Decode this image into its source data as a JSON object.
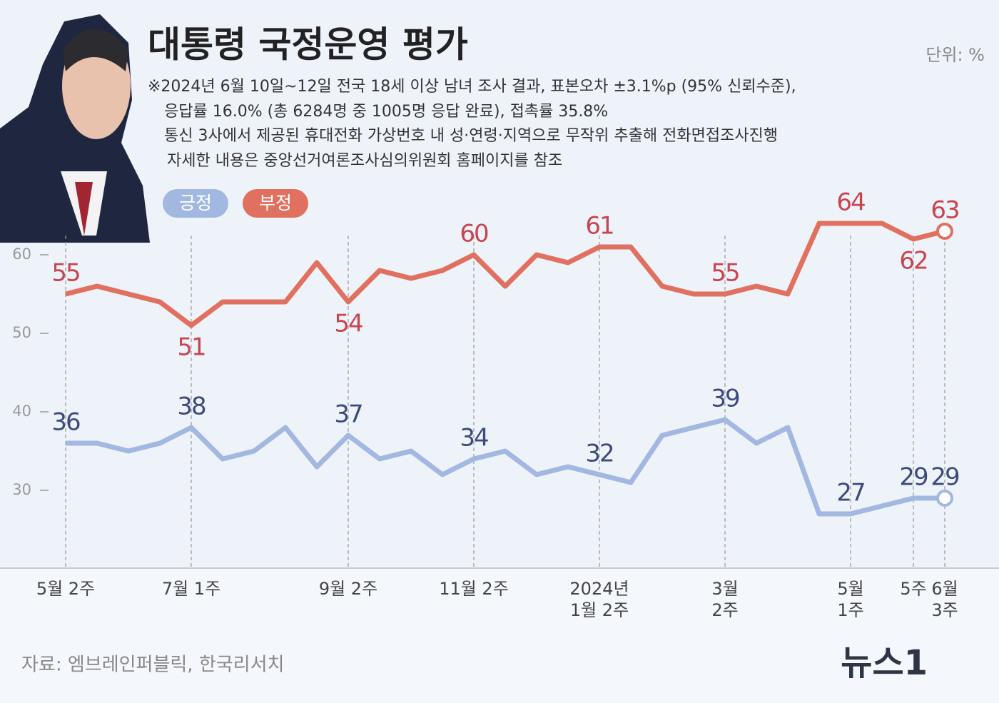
{
  "chart_data": {
    "type": "line",
    "title": "대통령 국정운영 평가",
    "unit": "단위: %",
    "notes": [
      "※2024년 6월 10일~12일 전국 18세 이상 남녀 조사 결과, 표본오차 ±3.1%p (95% 신뢰수준),",
      "응답률 16.0% (총 6284명 중 1005명 응답 완료), 접촉률 35.8%",
      "통신 3사에서 제공된 휴대전화 가상번호 내 성·연령·지역으로 무작위 추출해 전화면접조사진행",
      "자세한 내용은 중앙선거여론조사심의위원회 홈페이지를 참조"
    ],
    "source": "자료: 엠브레인퍼블릭, 한국리서치",
    "logo": "뉴스1",
    "categories": [
      "5월 2주",
      null,
      null,
      null,
      "7월 1주",
      null,
      null,
      null,
      null,
      "9월 2주",
      null,
      null,
      null,
      "11월 2주",
      null,
      null,
      null,
      "2024년\n1월 2주",
      null,
      null,
      null,
      "3월\n2주",
      null,
      null,
      null,
      "5월\n1주",
      null,
      "5주",
      "6월\n3주"
    ],
    "series": [
      {
        "name": "긍정",
        "color": "#a3b8e0",
        "label_color": "#3b4b7c",
        "values": [
          36,
          36,
          35,
          36,
          38,
          34,
          35,
          38,
          33,
          37,
          34,
          35,
          32,
          34,
          35,
          32,
          33,
          32,
          31,
          37,
          38,
          39,
          36,
          38,
          27,
          27,
          28,
          29,
          29
        ],
        "value_labels": [
          "36",
          null,
          null,
          null,
          "38",
          null,
          null,
          null,
          null,
          "37",
          null,
          null,
          null,
          "34",
          null,
          null,
          null,
          "32",
          null,
          null,
          null,
          "39",
          null,
          null,
          null,
          "27",
          null,
          "29",
          "29"
        ]
      },
      {
        "name": "부정",
        "color": "#e0705f",
        "label_color": "#c9444f",
        "values": [
          55,
          56,
          55,
          54,
          51,
          54,
          54,
          54,
          59,
          54,
          58,
          57,
          58,
          60,
          56,
          60,
          59,
          61,
          61,
          56,
          55,
          55,
          56,
          55,
          64,
          64,
          64,
          62,
          63
        ],
        "value_labels": [
          "55",
          null,
          null,
          null,
          "51",
          null,
          null,
          null,
          null,
          "54",
          null,
          null,
          null,
          "60",
          null,
          null,
          null,
          "61",
          null,
          null,
          null,
          "55",
          null,
          null,
          null,
          "64",
          null,
          "62",
          "63"
        ]
      }
    ],
    "ylim": [
      20,
      66
    ],
    "yticks": [
      30,
      40,
      50,
      60
    ]
  }
}
